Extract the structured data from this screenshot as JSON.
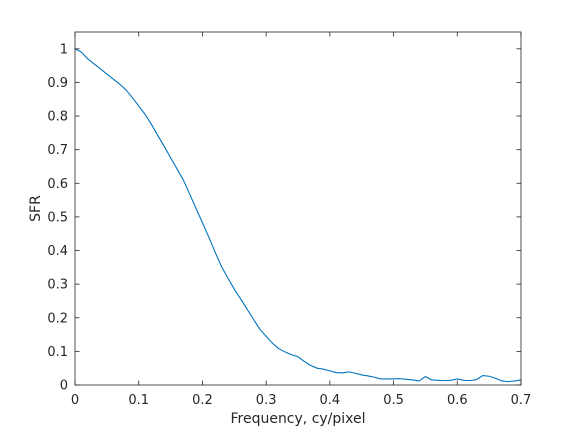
{
  "chart_data": {
    "type": "line",
    "title": "",
    "xlabel": "Frequency, cy/pixel",
    "ylabel": "SFR",
    "xlim": [
      0,
      0.7
    ],
    "ylim": [
      0,
      1.05
    ],
    "xticks": [
      0,
      0.1,
      0.2,
      0.3,
      0.4,
      0.5,
      0.6,
      0.7
    ],
    "xtick_labels": [
      "0",
      "0.1",
      "0.2",
      "0.3",
      "0.4",
      "0.5",
      "0.6",
      "0.7"
    ],
    "yticks": [
      0,
      0.1,
      0.2,
      0.3,
      0.4,
      0.5,
      0.6,
      0.7,
      0.8,
      0.9,
      1
    ],
    "ytick_labels": [
      "0",
      "0.1",
      "0.2",
      "0.3",
      "0.4",
      "0.5",
      "0.6",
      "0.7",
      "0.8",
      "0.9",
      "1"
    ],
    "grid": false,
    "box": true,
    "series": [
      {
        "name": "SFR",
        "color": "#0072bd",
        "x": [
          0,
          0.01,
          0.02,
          0.03,
          0.04,
          0.05,
          0.06,
          0.07,
          0.08,
          0.09,
          0.1,
          0.11,
          0.12,
          0.13,
          0.14,
          0.15,
          0.16,
          0.17,
          0.18,
          0.19,
          0.2,
          0.21,
          0.22,
          0.23,
          0.24,
          0.25,
          0.26,
          0.27,
          0.28,
          0.29,
          0.3,
          0.31,
          0.32,
          0.33,
          0.34,
          0.35,
          0.36,
          0.37,
          0.38,
          0.39,
          0.4,
          0.41,
          0.42,
          0.43,
          0.44,
          0.45,
          0.46,
          0.47,
          0.48,
          0.49,
          0.5,
          0.51,
          0.52,
          0.53,
          0.54,
          0.55,
          0.56,
          0.57,
          0.58,
          0.59,
          0.6,
          0.61,
          0.62,
          0.63,
          0.64,
          0.65,
          0.66,
          0.67,
          0.68,
          0.69,
          0.7
        ],
        "values": [
          1.0,
          0.99,
          0.97,
          0.955,
          0.94,
          0.925,
          0.91,
          0.895,
          0.878,
          0.855,
          0.83,
          0.805,
          0.775,
          0.742,
          0.71,
          0.676,
          0.643,
          0.61,
          0.568,
          0.525,
          0.483,
          0.44,
          0.395,
          0.352,
          0.318,
          0.285,
          0.256,
          0.226,
          0.196,
          0.166,
          0.145,
          0.124,
          0.108,
          0.098,
          0.09,
          0.084,
          0.07,
          0.058,
          0.05,
          0.047,
          0.042,
          0.037,
          0.036,
          0.039,
          0.035,
          0.03,
          0.027,
          0.023,
          0.018,
          0.018,
          0.018,
          0.019,
          0.017,
          0.015,
          0.012,
          0.025,
          0.015,
          0.014,
          0.013,
          0.014,
          0.018,
          0.014,
          0.013,
          0.016,
          0.028,
          0.026,
          0.02,
          0.012,
          0.01,
          0.012,
          0.015
        ]
      }
    ]
  }
}
